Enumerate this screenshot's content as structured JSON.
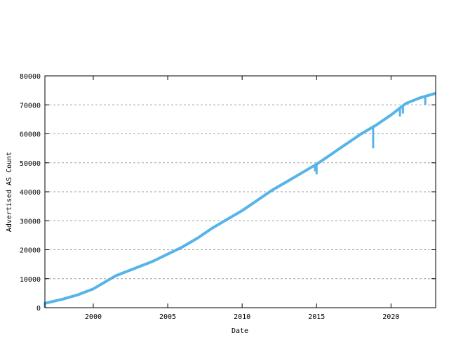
{
  "chart_data": {
    "type": "line",
    "title": "",
    "xlabel": "Date",
    "ylabel": "Advertised AS Count",
    "xlim": [
      1996.75,
      2023.0
    ],
    "ylim": [
      0,
      80000
    ],
    "x_ticks": [
      2000,
      2005,
      2010,
      2015,
      2020
    ],
    "y_ticks": [
      0,
      10000,
      20000,
      30000,
      40000,
      50000,
      60000,
      70000,
      80000
    ],
    "grid": "horizontal dashed",
    "color": "#56b4e9",
    "series": [
      {
        "x": [
          1996.75,
          1997,
          1998,
          1999,
          1999.5,
          2000,
          2000.5,
          2001,
          2001.5,
          2002,
          2003,
          2004,
          2005,
          2006,
          2007,
          2008,
          2009,
          2010,
          2011,
          2012,
          2013,
          2014,
          2015,
          2016,
          2017,
          2018,
          2019,
          2020,
          2021,
          2022,
          2023
        ],
        "y": [
          1500,
          1800,
          3000,
          4500,
          5500,
          6500,
          8000,
          9500,
          11000,
          12000,
          14000,
          16000,
          18500,
          21000,
          24000,
          27500,
          30500,
          33500,
          37000,
          40500,
          43500,
          46500,
          49500,
          53000,
          56500,
          60000,
          63000,
          66500,
          70500,
          72500,
          74000
        ]
      }
    ],
    "dips": [
      {
        "x": 1996.75,
        "from": 2000,
        "to": 0
      },
      {
        "x": 2014.9,
        "from": 49000,
        "to": 47000
      },
      {
        "x": 2015.0,
        "from": 49500,
        "to": 46000
      },
      {
        "x": 2018.8,
        "from": 62000,
        "to": 55000
      },
      {
        "x": 2020.6,
        "from": 69000,
        "to": 66000
      },
      {
        "x": 2020.8,
        "from": 69500,
        "to": 67000
      },
      {
        "x": 2022.3,
        "from": 73000,
        "to": 70000
      }
    ]
  }
}
